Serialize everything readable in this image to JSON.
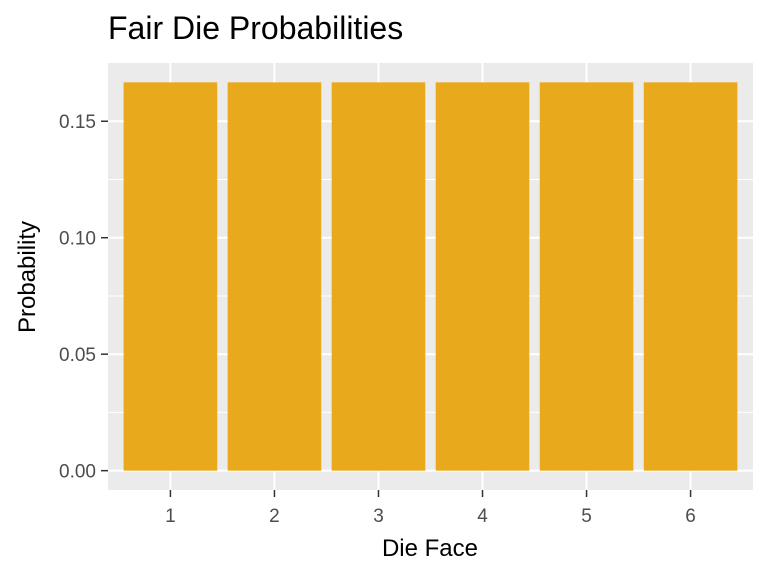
{
  "chart_data": {
    "type": "bar",
    "title": "Fair Die Probabilities",
    "xlabel": "Die Face",
    "ylabel": "Probability",
    "categories": [
      "1",
      "2",
      "3",
      "4",
      "5",
      "6"
    ],
    "values": [
      0.1667,
      0.1667,
      0.1667,
      0.1667,
      0.1667,
      0.1667
    ],
    "ylim": [
      -0.0083,
      0.175
    ],
    "yticks": [
      0.0,
      0.05,
      0.1,
      0.15
    ],
    "ytick_labels": [
      "0.00",
      "0.05",
      "0.10",
      "0.15"
    ],
    "grid": true,
    "legend": "none",
    "colors": {
      "bar": "#E8A91C",
      "panel": "#EBEBEB",
      "grid": "#FFFFFF",
      "tick": "#333333"
    }
  }
}
